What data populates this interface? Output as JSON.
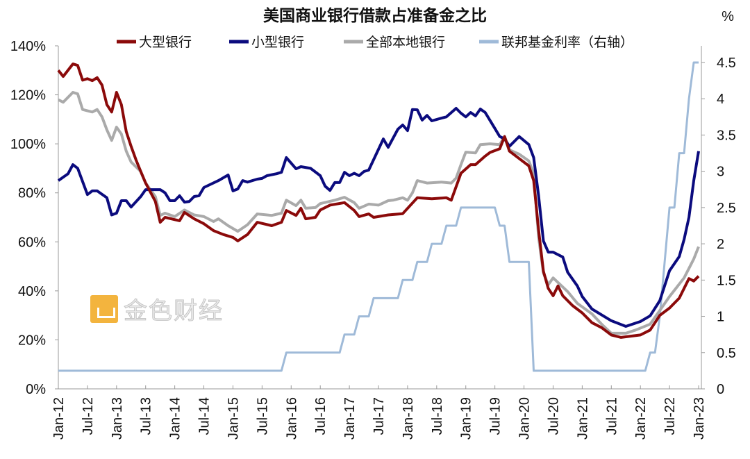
{
  "chart_data": {
    "type": "line",
    "title": "美国商业银行借款占准备金之比",
    "right_axis_unit": "%",
    "x_tick_labels": [
      "Jan-12",
      "Jul-12",
      "Jan-13",
      "Jul-13",
      "Jan-14",
      "Jul-14",
      "Jan-15",
      "Jul-15",
      "Jan-16",
      "Jul-16",
      "Jan-17",
      "Jul-17",
      "Jan-18",
      "Jul-18",
      "Jan-19",
      "Jul-19",
      "Jan-20",
      "Jul-20",
      "Jan-21",
      "Jul-21",
      "Jan-22",
      "Jul-22",
      "Jan-23"
    ],
    "x_range": [
      "2012-01",
      "2023-01"
    ],
    "y_left": {
      "range": [
        0,
        140
      ],
      "step": 20,
      "tick_labels": [
        "0%",
        "20%",
        "40%",
        "60%",
        "80%",
        "100%",
        "120%",
        "140%"
      ]
    },
    "y_right": {
      "range": [
        0,
        4.5
      ],
      "step": 0.5,
      "tick_labels": [
        "0",
        "0.5",
        "1",
        "1.5",
        "2",
        "2.5",
        "3",
        "3.5",
        "4",
        "4.5"
      ]
    },
    "grid": false,
    "legend_placement": "top",
    "series": [
      {
        "name": "大型银行",
        "axis": "left",
        "color": "#8b0a0a",
        "points": [
          [
            "2012-01",
            130
          ],
          [
            "2012-02",
            127.5
          ],
          [
            "2012-04",
            132.6
          ],
          [
            "2012-05",
            132
          ],
          [
            "2012-06",
            126
          ],
          [
            "2012-07",
            126.6
          ],
          [
            "2012-08",
            125.8
          ],
          [
            "2012-09",
            127
          ],
          [
            "2012-10",
            124
          ],
          [
            "2012-11",
            116
          ],
          [
            "2012-12",
            113
          ],
          [
            "2013-01",
            121
          ],
          [
            "2013-02",
            116
          ],
          [
            "2013-03",
            105
          ],
          [
            "2013-04",
            99
          ],
          [
            "2013-05",
            93.5
          ],
          [
            "2013-06",
            88.7
          ],
          [
            "2013-07",
            84
          ],
          [
            "2013-09",
            76.5
          ],
          [
            "2013-10",
            68
          ],
          [
            "2013-11",
            70
          ],
          [
            "2014-02",
            68.6
          ],
          [
            "2014-03",
            72
          ],
          [
            "2014-05",
            69.4
          ],
          [
            "2014-07",
            67.4
          ],
          [
            "2014-09",
            64.6
          ],
          [
            "2014-11",
            63
          ],
          [
            "2015-01",
            61.8
          ],
          [
            "2015-02",
            60.4
          ],
          [
            "2015-04",
            63
          ],
          [
            "2015-06",
            68
          ],
          [
            "2015-09",
            66.6
          ],
          [
            "2015-11",
            68
          ],
          [
            "2015-12",
            72.8
          ],
          [
            "2016-02",
            70.8
          ],
          [
            "2016-03",
            73.7
          ],
          [
            "2016-04",
            69.4
          ],
          [
            "2016-06",
            70
          ],
          [
            "2016-07",
            73
          ],
          [
            "2016-09",
            75
          ],
          [
            "2016-12",
            76
          ],
          [
            "2017-02",
            72.8
          ],
          [
            "2017-03",
            70.3
          ],
          [
            "2017-05",
            71.4
          ],
          [
            "2017-06",
            70
          ],
          [
            "2017-09",
            71
          ],
          [
            "2017-12",
            71.5
          ],
          [
            "2018-03",
            78
          ],
          [
            "2018-06",
            77.6
          ],
          [
            "2018-09",
            78
          ],
          [
            "2018-10",
            77
          ],
          [
            "2018-12",
            88
          ],
          [
            "2019-02",
            91.5
          ],
          [
            "2019-03",
            91.5
          ],
          [
            "2019-05",
            95
          ],
          [
            "2019-06",
            96.5
          ],
          [
            "2019-08",
            98
          ],
          [
            "2019-09",
            103
          ],
          [
            "2019-10",
            97
          ],
          [
            "2019-12",
            94
          ],
          [
            "2020-02",
            91
          ],
          [
            "2020-03",
            85
          ],
          [
            "2020-04",
            65
          ],
          [
            "2020-05",
            48
          ],
          [
            "2020-06",
            41
          ],
          [
            "2020-07",
            38
          ],
          [
            "2020-08",
            42
          ],
          [
            "2020-09",
            38
          ],
          [
            "2020-11",
            34
          ],
          [
            "2021-01",
            31
          ],
          [
            "2021-03",
            27
          ],
          [
            "2021-05",
            25
          ],
          [
            "2021-07",
            22
          ],
          [
            "2021-09",
            21
          ],
          [
            "2021-11",
            21.5
          ],
          [
            "2022-01",
            22
          ],
          [
            "2022-03",
            24
          ],
          [
            "2022-05",
            30
          ],
          [
            "2022-07",
            33
          ],
          [
            "2022-09",
            37
          ],
          [
            "2022-11",
            45
          ],
          [
            "2022-12",
            44
          ],
          [
            "2023-01",
            46
          ]
        ]
      },
      {
        "name": "小型银行",
        "axis": "left",
        "color": "#0b0b7e",
        "points": [
          [
            "2012-01",
            85
          ],
          [
            "2012-03",
            87.8
          ],
          [
            "2012-04",
            91.5
          ],
          [
            "2012-05",
            90
          ],
          [
            "2012-07",
            79.3
          ],
          [
            "2012-08",
            80.8
          ],
          [
            "2012-09",
            80.8
          ],
          [
            "2012-11",
            78
          ],
          [
            "2012-12",
            71
          ],
          [
            "2013-01",
            71.7
          ],
          [
            "2013-02",
            76.8
          ],
          [
            "2013-03",
            76.8
          ],
          [
            "2013-04",
            74.2
          ],
          [
            "2013-06",
            78.5
          ],
          [
            "2013-07",
            81.3
          ],
          [
            "2013-10",
            81.3
          ],
          [
            "2013-11",
            80
          ],
          [
            "2013-12",
            76.8
          ],
          [
            "2014-01",
            76.8
          ],
          [
            "2014-02",
            78.8
          ],
          [
            "2014-03",
            76.2
          ],
          [
            "2014-04",
            76.5
          ],
          [
            "2014-05",
            78.5
          ],
          [
            "2014-06",
            78.8
          ],
          [
            "2014-07",
            82.2
          ],
          [
            "2014-10",
            85
          ],
          [
            "2014-12",
            87.3
          ],
          [
            "2015-01",
            80.8
          ],
          [
            "2015-02",
            81.6
          ],
          [
            "2015-03",
            85
          ],
          [
            "2015-04",
            84.4
          ],
          [
            "2015-06",
            85.6
          ],
          [
            "2015-07",
            85.9
          ],
          [
            "2015-08",
            87
          ],
          [
            "2015-10",
            87.8
          ],
          [
            "2015-11",
            88.4
          ],
          [
            "2015-12",
            94.4
          ],
          [
            "2016-02",
            89.8
          ],
          [
            "2016-03",
            90.7
          ],
          [
            "2016-05",
            90
          ],
          [
            "2016-07",
            87
          ],
          [
            "2016-08",
            82.7
          ],
          [
            "2016-09",
            81
          ],
          [
            "2016-10",
            84.2
          ],
          [
            "2016-11",
            84.2
          ],
          [
            "2016-12",
            88.4
          ],
          [
            "2017-01",
            87
          ],
          [
            "2017-02",
            88
          ],
          [
            "2017-03",
            87
          ],
          [
            "2017-04",
            88.7
          ],
          [
            "2017-05",
            89.3
          ],
          [
            "2017-08",
            102
          ],
          [
            "2017-09",
            98.6
          ],
          [
            "2017-11",
            106
          ],
          [
            "2017-12",
            107.7
          ],
          [
            "2018-01",
            105.4
          ],
          [
            "2018-02",
            114
          ],
          [
            "2018-03",
            113.9
          ],
          [
            "2018-04",
            109.7
          ],
          [
            "2018-05",
            111.6
          ],
          [
            "2018-06",
            109.4
          ],
          [
            "2018-08",
            110.5
          ],
          [
            "2018-09",
            111
          ],
          [
            "2018-11",
            114.5
          ],
          [
            "2018-12",
            112.5
          ],
          [
            "2019-01",
            111
          ],
          [
            "2019-02",
            112.8
          ],
          [
            "2019-03",
            111.4
          ],
          [
            "2019-04",
            114.2
          ],
          [
            "2019-05",
            112.8
          ],
          [
            "2019-07",
            106.3
          ],
          [
            "2019-08",
            103
          ],
          [
            "2019-09",
            102
          ],
          [
            "2019-10",
            99
          ],
          [
            "2019-12",
            103
          ],
          [
            "2020-02",
            99.7
          ],
          [
            "2020-03",
            94.4
          ],
          [
            "2020-04",
            79
          ],
          [
            "2020-05",
            60.4
          ],
          [
            "2020-06",
            55.8
          ],
          [
            "2020-07",
            55.8
          ],
          [
            "2020-09",
            53.8
          ],
          [
            "2020-10",
            47.6
          ],
          [
            "2020-12",
            42
          ],
          [
            "2021-01",
            37.7
          ],
          [
            "2021-03",
            32.6
          ],
          [
            "2021-07",
            27.8
          ],
          [
            "2021-10",
            25.5
          ],
          [
            "2022-01",
            27.5
          ],
          [
            "2022-03",
            29.8
          ],
          [
            "2022-05",
            36
          ],
          [
            "2022-07",
            48.2
          ],
          [
            "2022-09",
            54
          ],
          [
            "2022-10",
            61
          ],
          [
            "2022-11",
            70
          ],
          [
            "2022-12",
            85
          ],
          [
            "2023-01",
            97
          ]
        ]
      },
      {
        "name": "全部本地银行",
        "axis": "left",
        "color": "#aaaaaa",
        "points": [
          [
            "2012-01",
            118
          ],
          [
            "2012-02",
            117
          ],
          [
            "2012-04",
            121
          ],
          [
            "2012-05",
            120.4
          ],
          [
            "2012-06",
            114
          ],
          [
            "2012-08",
            113
          ],
          [
            "2012-09",
            114
          ],
          [
            "2012-10",
            111
          ],
          [
            "2012-11",
            105.7
          ],
          [
            "2012-12",
            101.4
          ],
          [
            "2013-01",
            106.8
          ],
          [
            "2013-02",
            104
          ],
          [
            "2013-03",
            97
          ],
          [
            "2013-04",
            92.6
          ],
          [
            "2013-06",
            88.7
          ],
          [
            "2013-07",
            84
          ],
          [
            "2013-09",
            78.5
          ],
          [
            "2013-10",
            70.8
          ],
          [
            "2013-11",
            71.7
          ],
          [
            "2014-01",
            70.3
          ],
          [
            "2014-03",
            73
          ],
          [
            "2014-05",
            71
          ],
          [
            "2014-07",
            70.3
          ],
          [
            "2014-09",
            68.3
          ],
          [
            "2014-10",
            69.4
          ],
          [
            "2014-12",
            66.6
          ],
          [
            "2015-02",
            64.3
          ],
          [
            "2015-04",
            67
          ],
          [
            "2015-06",
            71.4
          ],
          [
            "2015-09",
            70.8
          ],
          [
            "2015-11",
            71.7
          ],
          [
            "2015-12",
            77
          ],
          [
            "2016-02",
            74.8
          ],
          [
            "2016-03",
            77
          ],
          [
            "2016-04",
            73.7
          ],
          [
            "2016-06",
            74
          ],
          [
            "2016-07",
            75.6
          ],
          [
            "2016-10",
            77
          ],
          [
            "2016-12",
            78.2
          ],
          [
            "2017-02",
            76
          ],
          [
            "2017-03",
            73.7
          ],
          [
            "2017-05",
            75.4
          ],
          [
            "2017-07",
            75
          ],
          [
            "2017-09",
            76.8
          ],
          [
            "2017-10",
            77
          ],
          [
            "2017-12",
            78
          ],
          [
            "2018-01",
            77
          ],
          [
            "2018-02",
            80
          ],
          [
            "2018-03",
            85
          ],
          [
            "2018-05",
            84
          ],
          [
            "2018-08",
            84.4
          ],
          [
            "2018-10",
            84
          ],
          [
            "2018-11",
            86
          ],
          [
            "2018-12",
            91.5
          ],
          [
            "2019-01",
            96.6
          ],
          [
            "2019-03",
            96.3
          ],
          [
            "2019-04",
            99.7
          ],
          [
            "2019-06",
            100
          ],
          [
            "2019-08",
            99.7
          ],
          [
            "2019-09",
            103
          ],
          [
            "2019-10",
            97.5
          ],
          [
            "2019-12",
            95.8
          ],
          [
            "2020-01",
            94.4
          ],
          [
            "2020-02",
            93
          ],
          [
            "2020-03",
            88
          ],
          [
            "2020-04",
            62
          ],
          [
            "2020-05",
            47.3
          ],
          [
            "2020-06",
            42.5
          ],
          [
            "2020-07",
            45.3
          ],
          [
            "2020-10",
            39.7
          ],
          [
            "2020-12",
            34.9
          ],
          [
            "2021-03",
            30.6
          ],
          [
            "2021-05",
            26.4
          ],
          [
            "2021-07",
            22.7
          ],
          [
            "2021-10",
            22.7
          ],
          [
            "2021-12",
            24
          ],
          [
            "2022-03",
            26.4
          ],
          [
            "2022-05",
            32
          ],
          [
            "2022-07",
            37.7
          ],
          [
            "2022-10",
            45.3
          ],
          [
            "2022-12",
            53
          ],
          [
            "2023-01",
            58
          ]
        ]
      },
      {
        "name": "联邦基金利率（右轴）",
        "axis": "right",
        "color": "#9fbad8",
        "step_changes": [
          [
            "2012-01",
            0.25
          ],
          [
            "2015-12",
            0.5
          ],
          [
            "2016-12",
            0.75
          ],
          [
            "2017-03",
            1.0
          ],
          [
            "2017-06",
            1.25
          ],
          [
            "2017-12",
            1.5
          ],
          [
            "2018-03",
            1.75
          ],
          [
            "2018-06",
            2.0
          ],
          [
            "2018-09",
            2.25
          ],
          [
            "2018-12",
            2.5
          ],
          [
            "2019-08",
            2.25
          ],
          [
            "2019-10",
            1.75
          ],
          [
            "2020-03",
            0.25
          ],
          [
            "2022-03",
            0.5
          ],
          [
            "2022-05",
            1.0
          ],
          [
            "2022-06",
            1.75
          ],
          [
            "2022-07",
            2.5
          ],
          [
            "2022-09",
            3.25
          ],
          [
            "2022-11",
            4.0
          ],
          [
            "2022-12",
            4.5
          ]
        ]
      }
    ]
  },
  "watermark": {
    "text": "金色财经",
    "color": "#f2a81d"
  }
}
